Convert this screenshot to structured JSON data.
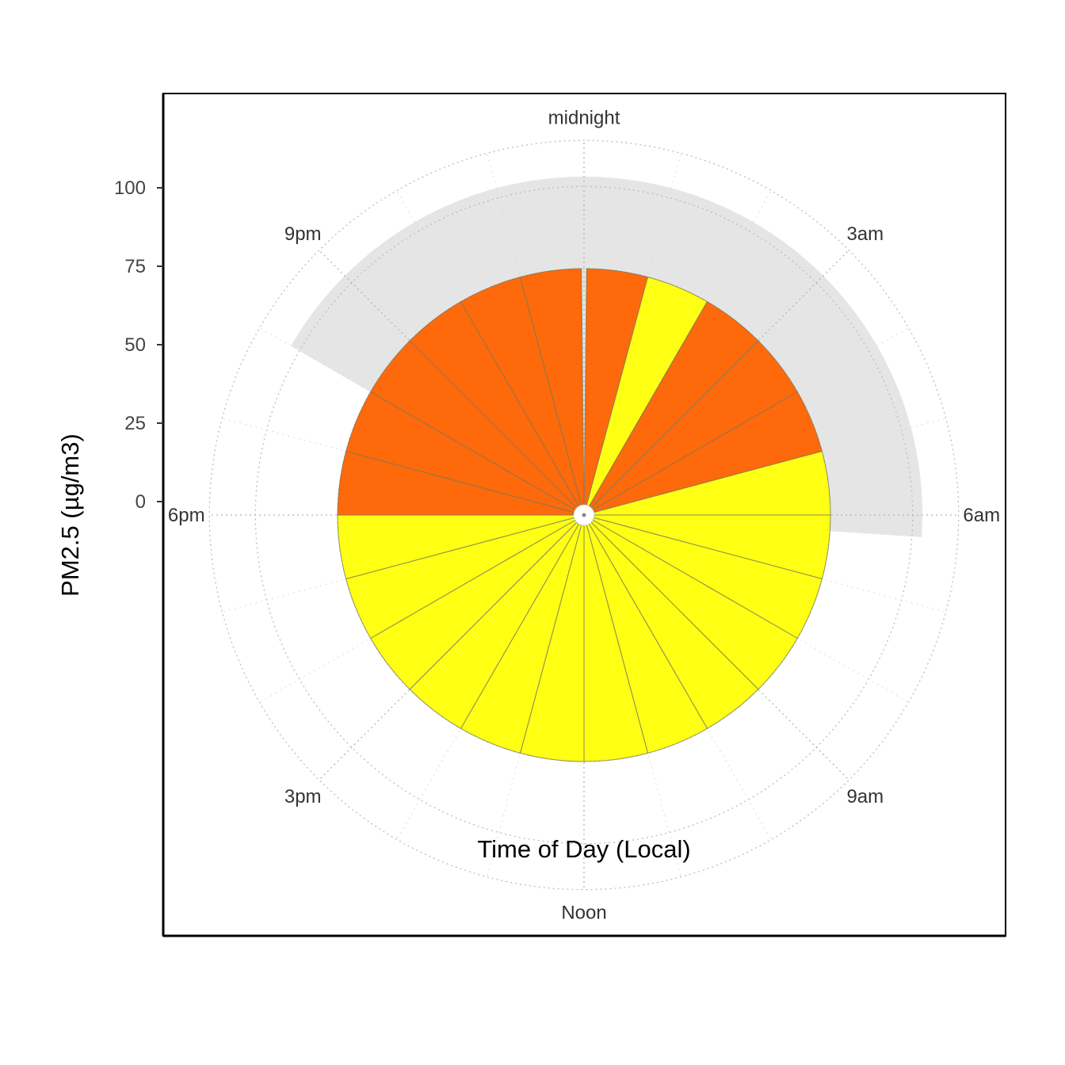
{
  "chart_data": {
    "type": "polar-bar",
    "xlabel": "Time of Day (Local)",
    "ylabel": "PM2.5 (µg/m3)",
    "y_ticks": [
      0,
      25,
      50,
      75,
      100
    ],
    "ylim": [
      0,
      104
    ],
    "hour_labels": [
      {
        "hour": 0,
        "label": "midnight"
      },
      {
        "hour": 3,
        "label": "3am"
      },
      {
        "hour": 6,
        "label": "6am"
      },
      {
        "hour": 9,
        "label": "9am"
      },
      {
        "hour": 12,
        "label": "Noon"
      },
      {
        "hour": 15,
        "label": "3pm"
      },
      {
        "hour": 18,
        "label": "6pm"
      },
      {
        "hour": 21,
        "label": "9pm"
      }
    ],
    "hours": [
      0,
      1,
      2,
      3,
      4,
      5,
      6,
      7,
      8,
      9,
      10,
      11,
      12,
      13,
      14,
      15,
      16,
      17,
      18,
      19,
      20,
      21,
      22,
      23
    ],
    "values": [
      75,
      75,
      75,
      75,
      75,
      75,
      75,
      75,
      75,
      75,
      75,
      75,
      75,
      75,
      75,
      75,
      75,
      75,
      75,
      75,
      75,
      75,
      75,
      75
    ],
    "colors": [
      "#fd690b",
      "#ffff14",
      "#fd690b",
      "#fd690b",
      "#fd690b",
      "#ffff14",
      "#ffff14",
      "#ffff14",
      "#ffff14",
      "#ffff14",
      "#ffff14",
      "#ffff14",
      "#ffff14",
      "#ffff14",
      "#ffff14",
      "#ffff14",
      "#ffff14",
      "#ffff14",
      "#fd690b",
      "#fd690b",
      "#fd690b",
      "#fd690b",
      "#fd690b",
      "#fd690b"
    ],
    "shaded_band": {
      "start_hour": 20.0,
      "end_hour": 6.25,
      "value": 103
    },
    "grid": true
  }
}
